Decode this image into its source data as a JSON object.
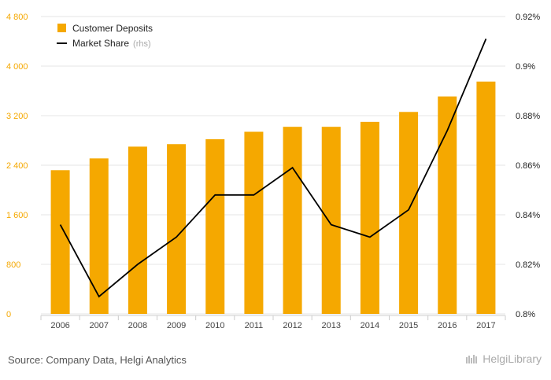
{
  "chart_data": {
    "type": "bar",
    "categories": [
      "2006",
      "2007",
      "2008",
      "2009",
      "2010",
      "2011",
      "2012",
      "2013",
      "2014",
      "2015",
      "2016",
      "2017"
    ],
    "series": [
      {
        "name": "Customer Deposits",
        "kind": "bar",
        "axis": "left",
        "values": [
          2320,
          2510,
          2700,
          2740,
          2820,
          2940,
          3020,
          3020,
          3100,
          3260,
          3510,
          3750
        ]
      },
      {
        "name": "Market Share",
        "suffix": "(rhs)",
        "kind": "line",
        "axis": "right",
        "values": [
          0.836,
          0.807,
          0.82,
          0.831,
          0.848,
          0.848,
          0.859,
          0.836,
          0.831,
          0.842,
          0.874,
          0.911
        ]
      }
    ],
    "yleft": {
      "lim": [
        0,
        4800
      ],
      "ticks": [
        "0",
        "800",
        "1 600",
        "2 400",
        "3 200",
        "4 000",
        "4 800"
      ],
      "values": [
        0,
        800,
        1600,
        2400,
        3200,
        4000,
        4800
      ]
    },
    "yright": {
      "lim": [
        0.8,
        0.92
      ],
      "ticks": [
        "0.8%",
        "0.82%",
        "0.84%",
        "0.86%",
        "0.88%",
        "0.9%",
        "0.92%"
      ],
      "values": [
        0.8,
        0.82,
        0.84,
        0.86,
        0.88,
        0.9,
        0.92
      ]
    },
    "legend_position": "top-left",
    "colors": {
      "bar": "#f5a800",
      "line": "#000000",
      "left_axis": "#f5a800"
    }
  },
  "footer": {
    "source": "Source: Company Data, Helgi Analytics",
    "logo": "HelgiLibrary"
  }
}
